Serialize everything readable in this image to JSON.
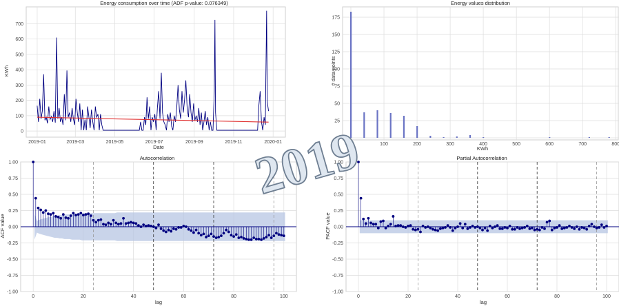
{
  "watermark": "2019",
  "colors": {
    "line": "#000080",
    "trend": "#e03030",
    "bars": "#6a74c4",
    "conf": "#b7c6e3",
    "grid": "#dddddd",
    "vline_light": "#999999",
    "vline_dark": "#333333",
    "zero_line": "#000080"
  },
  "chart_data": [
    {
      "type": "line",
      "title": "Energy consumption over time (ADF p-value: 0.076349)",
      "xlabel": "Date",
      "ylabel": "KWh",
      "x_ticks": [
        "2019-01",
        "2019-03",
        "2019-05",
        "2019-07",
        "2019-09",
        "2019-11",
        "2020-01"
      ],
      "xlim": [
        "2018-12-15",
        "2020-01-20"
      ],
      "ylim": [
        -40,
        810
      ],
      "y_ticks": [
        0,
        100,
        200,
        300,
        400,
        500,
        600,
        700
      ],
      "series": [
        {
          "values_note": "daily",
          "points": [
            [
              "2019-01-01",
              165
            ],
            [
              "2019-01-03",
              60
            ],
            [
              "2019-01-05",
              210
            ],
            [
              "2019-01-07",
              80
            ],
            [
              "2019-01-09",
              130
            ],
            [
              "2019-01-11",
              370
            ],
            [
              "2019-01-13",
              70
            ],
            [
              "2019-01-15",
              90
            ],
            [
              "2019-01-17",
              50
            ],
            [
              "2019-01-19",
              160
            ],
            [
              "2019-01-21",
              75
            ],
            [
              "2019-01-23",
              95
            ],
            [
              "2019-01-25",
              60
            ],
            [
              "2019-01-27",
              130
            ],
            [
              "2019-01-29",
              55
            ],
            [
              "2019-01-31",
              610
            ],
            [
              "2019-02-02",
              80
            ],
            [
              "2019-02-04",
              150
            ],
            [
              "2019-02-06",
              60
            ],
            [
              "2019-02-08",
              90
            ],
            [
              "2019-02-10",
              40
            ],
            [
              "2019-02-12",
              240
            ],
            [
              "2019-02-14",
              70
            ],
            [
              "2019-02-16",
              395
            ],
            [
              "2019-02-18",
              90
            ],
            [
              "2019-02-20",
              120
            ],
            [
              "2019-02-22",
              60
            ],
            [
              "2019-02-24",
              150
            ],
            [
              "2019-02-26",
              80
            ],
            [
              "2019-02-28",
              40
            ],
            [
              "2019-03-02",
              210
            ],
            [
              "2019-03-04",
              120
            ],
            [
              "2019-03-06",
              60
            ],
            [
              "2019-03-08",
              180
            ],
            [
              "2019-03-10",
              5
            ],
            [
              "2019-03-12",
              140
            ],
            [
              "2019-03-14",
              5
            ],
            [
              "2019-03-16",
              75
            ],
            [
              "2019-03-18",
              5
            ],
            [
              "2019-03-20",
              160
            ],
            [
              "2019-03-22",
              90
            ],
            [
              "2019-03-24",
              20
            ],
            [
              "2019-03-26",
              140
            ],
            [
              "2019-03-28",
              60
            ],
            [
              "2019-03-30",
              5
            ],
            [
              "2019-04-01",
              160
            ],
            [
              "2019-04-03",
              90
            ],
            [
              "2019-04-05",
              110
            ],
            [
              "2019-04-07",
              5
            ],
            [
              "2019-04-09",
              110
            ],
            [
              "2019-04-11",
              40
            ],
            [
              "2019-04-13",
              5
            ],
            [
              "2019-04-15",
              5
            ],
            [
              "2019-04-17",
              5
            ],
            [
              "2019-04-19",
              5
            ],
            [
              "2019-04-21",
              5
            ],
            [
              "2019-04-23",
              5
            ],
            [
              "2019-04-25",
              5
            ],
            [
              "2019-04-27",
              5
            ],
            [
              "2019-04-29",
              5
            ],
            [
              "2019-05-01",
              5
            ],
            [
              "2019-05-05",
              5
            ],
            [
              "2019-05-10",
              5
            ],
            [
              "2019-05-15",
              5
            ],
            [
              "2019-05-20",
              5
            ],
            [
              "2019-05-25",
              5
            ],
            [
              "2019-05-30",
              5
            ],
            [
              "2019-06-04",
              5
            ],
            [
              "2019-06-08",
              5
            ],
            [
              "2019-06-10",
              60
            ],
            [
              "2019-06-12",
              5
            ],
            [
              "2019-06-14",
              5
            ],
            [
              "2019-06-16",
              90
            ],
            [
              "2019-06-18",
              40
            ],
            [
              "2019-06-20",
              220
            ],
            [
              "2019-06-22",
              80
            ],
            [
              "2019-06-24",
              160
            ],
            [
              "2019-06-26",
              5
            ],
            [
              "2019-06-28",
              90
            ],
            [
              "2019-06-30",
              60
            ],
            [
              "2019-07-02",
              110
            ],
            [
              "2019-07-04",
              5
            ],
            [
              "2019-07-06",
              150
            ],
            [
              "2019-07-08",
              260
            ],
            [
              "2019-07-10",
              80
            ],
            [
              "2019-07-12",
              380
            ],
            [
              "2019-07-14",
              120
            ],
            [
              "2019-07-16",
              60
            ],
            [
              "2019-07-18",
              40
            ],
            [
              "2019-07-20",
              5
            ],
            [
              "2019-07-22",
              110
            ],
            [
              "2019-07-24",
              60
            ],
            [
              "2019-07-26",
              120
            ],
            [
              "2019-07-28",
              30
            ],
            [
              "2019-07-30",
              5
            ],
            [
              "2019-08-01",
              100
            ],
            [
              "2019-08-03",
              60
            ],
            [
              "2019-08-05",
              160
            ],
            [
              "2019-08-07",
              300
            ],
            [
              "2019-08-09",
              140
            ],
            [
              "2019-08-11",
              80
            ],
            [
              "2019-08-13",
              260
            ],
            [
              "2019-08-15",
              120
            ],
            [
              "2019-08-17",
              200
            ],
            [
              "2019-08-19",
              330
            ],
            [
              "2019-08-21",
              150
            ],
            [
              "2019-08-23",
              90
            ],
            [
              "2019-08-25",
              240
            ],
            [
              "2019-08-27",
              120
            ],
            [
              "2019-08-29",
              60
            ],
            [
              "2019-08-31",
              180
            ],
            [
              "2019-09-02",
              70
            ],
            [
              "2019-09-04",
              100
            ],
            [
              "2019-09-06",
              60
            ],
            [
              "2019-09-08",
              150
            ],
            [
              "2019-09-10",
              40
            ],
            [
              "2019-09-12",
              120
            ],
            [
              "2019-09-14",
              5
            ],
            [
              "2019-09-16",
              60
            ],
            [
              "2019-09-18",
              130
            ],
            [
              "2019-09-20",
              40
            ],
            [
              "2019-09-22",
              90
            ],
            [
              "2019-09-24",
              5
            ],
            [
              "2019-09-26",
              60
            ],
            [
              "2019-09-28",
              5
            ],
            [
              "2019-09-30",
              5
            ],
            [
              "2019-10-02",
              260
            ],
            [
              "2019-10-03",
              725
            ],
            [
              "2019-10-04",
              120
            ],
            [
              "2019-10-06",
              5
            ],
            [
              "2019-10-08",
              5
            ],
            [
              "2019-10-12",
              5
            ],
            [
              "2019-10-18",
              5
            ],
            [
              "2019-10-25",
              5
            ],
            [
              "2019-11-01",
              5
            ],
            [
              "2019-11-08",
              5
            ],
            [
              "2019-11-15",
              5
            ],
            [
              "2019-11-22",
              5
            ],
            [
              "2019-11-29",
              5
            ],
            [
              "2019-12-04",
              5
            ],
            [
              "2019-12-08",
              5
            ],
            [
              "2019-12-10",
              170
            ],
            [
              "2019-12-12",
              260
            ],
            [
              "2019-12-14",
              60
            ],
            [
              "2019-12-16",
              5
            ],
            [
              "2019-12-18",
              90
            ],
            [
              "2019-12-20",
              40
            ],
            [
              "2019-12-22",
              785
            ],
            [
              "2019-12-23",
              190
            ],
            [
              "2019-12-25",
              130
            ]
          ]
        },
        {
          "values_note": "trend",
          "points": [
            [
              "2019-01-01",
              90
            ],
            [
              "2019-12-25",
              58
            ]
          ]
        }
      ]
    },
    {
      "type": "bar",
      "title": "Energy values distribution",
      "xlabel": "KWh",
      "ylabel": "# data points",
      "xlim": [
        -25,
        810
      ],
      "ylim": [
        -3,
        190
      ],
      "x_ticks": [
        0,
        100,
        200,
        300,
        400,
        500,
        600,
        700,
        800
      ],
      "y_ticks": [
        0,
        25,
        50,
        75,
        100,
        125,
        150,
        175
      ],
      "bins": [
        [
          0,
          183
        ],
        [
          40,
          37
        ],
        [
          80,
          40
        ],
        [
          120,
          36
        ],
        [
          160,
          32
        ],
        [
          200,
          17
        ],
        [
          240,
          3
        ],
        [
          280,
          1
        ],
        [
          320,
          2
        ],
        [
          360,
          4
        ],
        [
          400,
          1
        ],
        [
          600,
          1
        ],
        [
          720,
          1
        ],
        [
          780,
          1
        ]
      ]
    },
    {
      "type": "scatter",
      "title": "Autocorrelation",
      "xlabel": "lag",
      "ylabel": "ACF value",
      "xlim": [
        -5,
        105
      ],
      "ylim": [
        -1.0,
        1.0
      ],
      "x_ticks": [
        0,
        20,
        40,
        60,
        80,
        100
      ],
      "y_ticks": [
        "1.00",
        "0.75",
        "0.50",
        "0.25",
        "0.00",
        "-0.25",
        "-0.50",
        "-0.75",
        "-1.00"
      ],
      "vlines_light": [
        24,
        96
      ],
      "vlines_dark": [
        48,
        72
      ],
      "values": [
        1.0,
        0.44,
        0.29,
        0.26,
        0.22,
        0.25,
        0.2,
        0.19,
        0.21,
        0.16,
        0.15,
        0.13,
        0.19,
        0.14,
        0.13,
        0.17,
        0.21,
        0.18,
        0.19,
        0.21,
        0.18,
        0.19,
        0.2,
        0.17,
        0.1,
        0.07,
        0.1,
        0.11,
        0.04,
        0.03,
        0.06,
        0.04,
        0.1,
        0.06,
        0.04,
        0.05,
        0.13,
        0.05,
        0.06,
        0.07,
        0.06,
        0.05,
        0.02,
        0.0,
        0.03,
        0.01,
        0.02,
        0.01,
        0.0,
        -0.02,
        0.03,
        -0.03,
        -0.06,
        -0.08,
        -0.05,
        -0.07,
        -0.03,
        -0.04,
        -0.01,
        -0.01,
        0.01,
        0.0,
        -0.04,
        -0.06,
        -0.09,
        -0.05,
        -0.1,
        -0.13,
        -0.11,
        -0.16,
        -0.14,
        -0.11,
        -0.15,
        -0.17,
        -0.16,
        -0.14,
        -0.1,
        -0.05,
        -0.08,
        -0.13,
        -0.15,
        -0.12,
        -0.17,
        -0.16,
        -0.18,
        -0.19,
        -0.2,
        -0.2,
        -0.17,
        -0.19,
        -0.19,
        -0.2,
        -0.18,
        -0.16,
        -0.13,
        -0.17,
        -0.14,
        -0.1,
        -0.12,
        -0.13,
        -0.14
      ],
      "conf_upper": [
        0.2,
        0.09,
        0.11,
        0.12,
        0.13,
        0.14,
        0.15,
        0.16,
        0.17,
        0.17,
        0.18,
        0.18,
        0.19,
        0.19,
        0.19,
        0.2,
        0.2,
        0.2,
        0.2,
        0.21,
        0.21,
        0.21,
        0.21,
        0.21,
        0.21,
        0.21,
        0.21,
        0.21,
        0.21,
        0.21,
        0.21,
        0.21,
        0.21,
        0.22,
        0.22,
        0.22,
        0.22,
        0.22,
        0.22,
        0.22,
        0.22,
        0.22,
        0.22,
        0.22,
        0.22,
        0.22,
        0.22,
        0.22,
        0.22,
        0.22,
        0.22,
        0.22,
        0.22,
        0.22,
        0.22,
        0.22,
        0.22,
        0.22,
        0.22,
        0.22,
        0.22,
        0.22,
        0.22,
        0.22,
        0.22,
        0.22,
        0.22,
        0.22,
        0.22,
        0.22,
        0.22,
        0.22,
        0.22,
        0.22,
        0.22,
        0.22,
        0.22,
        0.22,
        0.22,
        0.22,
        0.22,
        0.22,
        0.22,
        0.22,
        0.22,
        0.22,
        0.22,
        0.22,
        0.22,
        0.22,
        0.22,
        0.22,
        0.22,
        0.22,
        0.22,
        0.22,
        0.22,
        0.22,
        0.22,
        0.22,
        0.22
      ]
    },
    {
      "type": "scatter",
      "title": "Partial Autocorrelation",
      "xlabel": "lag",
      "ylabel": "PACF value",
      "xlim": [
        -5,
        105
      ],
      "ylim": [
        -1.0,
        1.0
      ],
      "x_ticks": [
        0,
        20,
        40,
        60,
        80,
        100
      ],
      "y_ticks": [
        "1.00",
        "0.75",
        "0.50",
        "0.25",
        "0.00",
        "-0.25",
        "-0.50",
        "-0.75",
        "-1.00"
      ],
      "vlines_light": [
        24,
        96
      ],
      "vlines_dark": [
        48,
        72
      ],
      "conf": 0.1,
      "values": [
        1.0,
        0.44,
        0.12,
        0.05,
        0.13,
        0.06,
        0.04,
        0.04,
        -0.02,
        0.08,
        0.09,
        -0.02,
        0.01,
        0.04,
        0.16,
        0.01,
        0.02,
        0.02,
        0.0,
        -0.01,
        0.01,
        0.02,
        -0.04,
        -0.05,
        -0.04,
        -0.08,
        0.01,
        -0.01,
        0.0,
        -0.02,
        -0.04,
        -0.05,
        -0.06,
        -0.03,
        -0.02,
        -0.01,
        0.02,
        -0.01,
        -0.06,
        -0.02,
        0.0,
        0.05,
        -0.02,
        0.04,
        -0.03,
        -0.01,
        0.01,
        -0.01,
        0.0,
        -0.02,
        -0.05,
        -0.02,
        -0.06,
        0.01,
        -0.02,
        0.0,
        0.02,
        -0.03,
        -0.03,
        -0.01,
        -0.02,
        0.01,
        -0.04,
        -0.04,
        -0.01,
        -0.03,
        -0.02,
        -0.01,
        0.01,
        -0.03,
        -0.02,
        -0.05,
        -0.04,
        -0.05,
        -0.01,
        -0.03,
        0.07,
        0.09,
        -0.05,
        -0.02,
        -0.01,
        0.02,
        -0.03,
        -0.02,
        -0.01,
        0.01,
        -0.01,
        -0.03,
        0.0,
        -0.04,
        -0.01,
        -0.02,
        -0.04,
        0.01,
        0.04,
        0.0,
        -0.02,
        -0.01,
        0.03,
        -0.01,
        0.01
      ]
    }
  ]
}
